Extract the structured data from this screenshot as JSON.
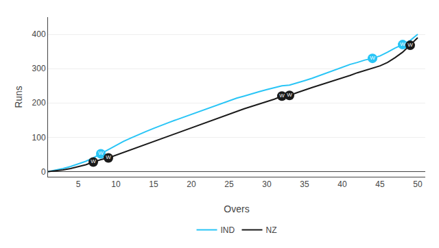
{
  "chart_data": {
    "type": "line",
    "xlabel": "Overs",
    "ylabel": "Runs",
    "x": [
      1,
      2,
      3,
      4,
      5,
      6,
      7,
      8,
      9,
      10,
      11,
      12,
      13,
      14,
      15,
      16,
      17,
      18,
      19,
      20,
      21,
      22,
      23,
      24,
      25,
      26,
      27,
      28,
      29,
      30,
      31,
      32,
      33,
      34,
      35,
      36,
      37,
      38,
      39,
      40,
      41,
      42,
      43,
      44,
      45,
      46,
      47,
      48,
      49,
      50
    ],
    "series": [
      {
        "name": "IND",
        "color": "#29c5f6",
        "values": [
          0,
          4,
          9,
          15,
          22,
          30,
          40,
          52,
          65,
          76,
          88,
          98,
          108,
          117,
          126,
          135,
          143,
          151,
          159,
          167,
          175,
          183,
          191,
          199,
          207,
          214,
          220,
          227,
          233,
          239,
          245,
          250,
          252,
          258,
          265,
          272,
          280,
          288,
          296,
          305,
          312,
          318,
          325,
          330,
          337,
          348,
          360,
          370,
          382,
          400
        ],
        "wickets": [
          {
            "x": 8,
            "y": 52,
            "label": "W"
          },
          {
            "x": 44,
            "y": 330,
            "label": "W"
          },
          {
            "x": 48,
            "y": 370,
            "label": "W"
          }
        ]
      },
      {
        "name": "NZ",
        "color": "#1a1a1a",
        "values": [
          0,
          2,
          5,
          9,
          14,
          20,
          28,
          35,
          40,
          48,
          56,
          64,
          72,
          80,
          88,
          96,
          104,
          112,
          120,
          128,
          136,
          144,
          152,
          160,
          168,
          176,
          183,
          190,
          197,
          204,
          211,
          220,
          222,
          230,
          238,
          245,
          252,
          259,
          265,
          272,
          280,
          288,
          295,
          302,
          308,
          318,
          332,
          348,
          368,
          390
        ],
        "wickets": [
          {
            "x": 7,
            "y": 28,
            "label": "W"
          },
          {
            "x": 9,
            "y": 40,
            "label": "W"
          },
          {
            "x": 32,
            "y": 220,
            "label": "W"
          },
          {
            "x": 33,
            "y": 222,
            "label": "W"
          },
          {
            "x": 49,
            "y": 368,
            "label": "W"
          }
        ]
      }
    ],
    "xlim": [
      1,
      51
    ],
    "ylim": [
      -15,
      450
    ],
    "xticks": [
      5,
      10,
      15,
      20,
      25,
      30,
      35,
      40,
      45,
      50
    ],
    "yticks": [
      0,
      100,
      200,
      300,
      400
    ],
    "grid": "y",
    "legend": "bottom"
  }
}
